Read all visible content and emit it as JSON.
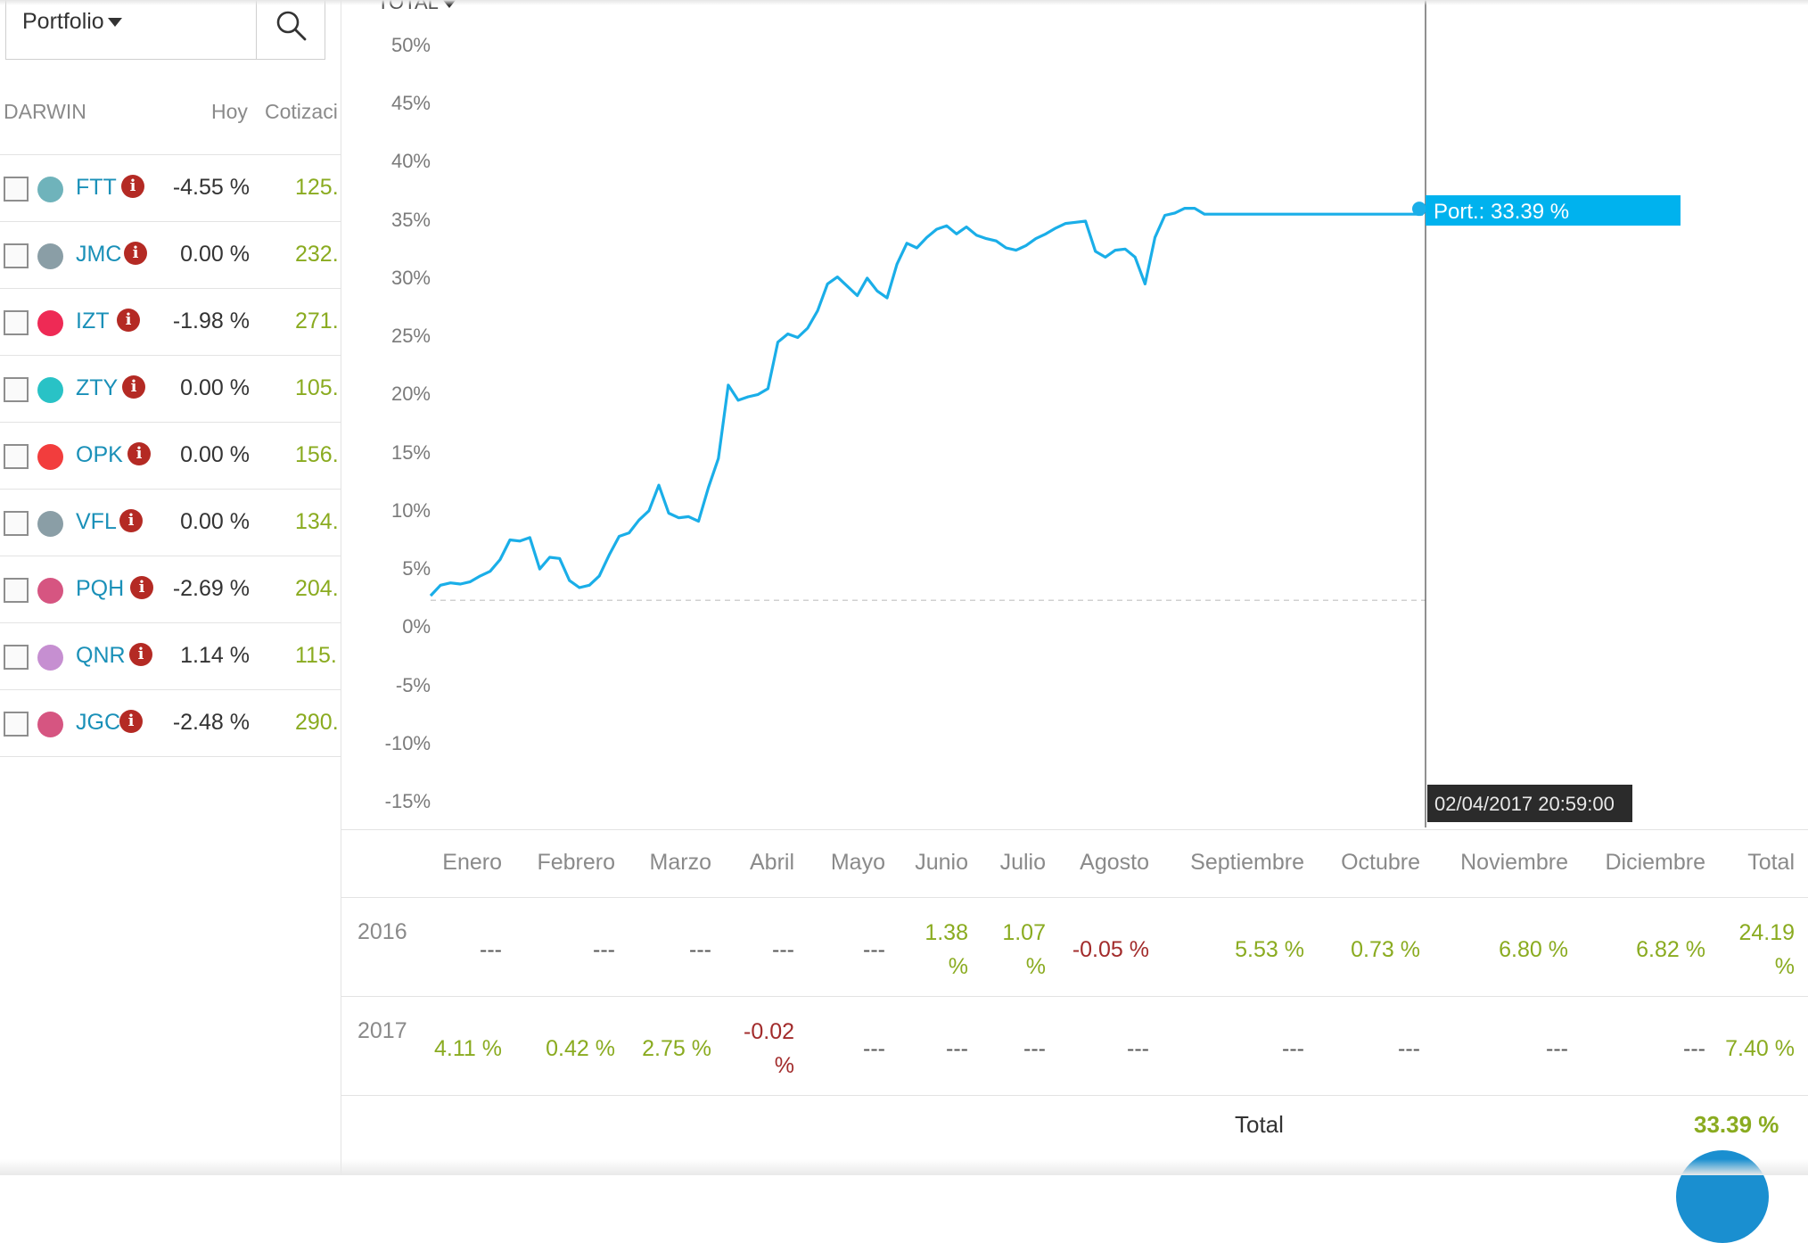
{
  "portfolio": {
    "label": "Portfolio"
  },
  "table": {
    "headers": {
      "darwin": "DARWIN",
      "hoy": "Hoy",
      "cotizacion": "Cotizaci"
    },
    "rows": [
      {
        "name": "FTT",
        "color": "#6fb3bb",
        "hoy": "-4.55 %",
        "cotizacion": "125."
      },
      {
        "name": "JMC",
        "color": "#8a9ea6",
        "hoy": "0.00 %",
        "cotizacion": "232."
      },
      {
        "name": "IZT",
        "color": "#ee2a55",
        "hoy": "-1.98 %",
        "cotizacion": "271."
      },
      {
        "name": "ZTY",
        "color": "#29c2c6",
        "hoy": "0.00 %",
        "cotizacion": "105."
      },
      {
        "name": "OPK",
        "color": "#f23d3d",
        "hoy": "0.00 %",
        "cotizacion": "156."
      },
      {
        "name": "VFL",
        "color": "#8a9ea6",
        "hoy": "0.00 %",
        "cotizacion": "134."
      },
      {
        "name": "PQH",
        "color": "#d65581",
        "hoy": "-2.69 %",
        "cotizacion": "204."
      },
      {
        "name": "QNR",
        "color": "#c68fd1",
        "hoy": "1.14 %",
        "cotizacion": "115."
      },
      {
        "name": "JGC",
        "color": "#d65581",
        "hoy": "-2.48 %",
        "cotizacion": "290."
      }
    ]
  },
  "chart": {
    "period_label": "TOTAL",
    "tooltip_label": "Port.: 33.39 %",
    "date_label": "02/04/2017 20:59:00",
    "line_color": "#1aaee8"
  },
  "chart_data": {
    "type": "line",
    "y_ticks": [
      "50%",
      "45%",
      "40%",
      "35%",
      "30%",
      "25%",
      "20%",
      "15%",
      "10%",
      "5%",
      "0%",
      "-5%",
      "-10%",
      "-15%"
    ],
    "ylim": [
      -15,
      50
    ],
    "xlim": [
      0,
      100
    ],
    "baseline": 2.3,
    "series": [
      {
        "x": [
          0,
          1,
          2,
          3,
          4,
          5,
          6,
          7,
          8,
          9,
          10,
          11,
          12,
          13,
          14,
          15,
          16,
          17,
          18,
          19,
          20,
          21,
          22,
          23,
          24,
          25,
          26,
          27,
          28,
          29,
          30,
          31,
          32,
          33,
          34,
          35,
          36,
          37,
          38,
          39,
          40,
          41,
          42,
          43,
          44,
          45,
          46,
          47,
          48,
          49,
          50,
          51,
          52,
          53,
          54,
          55,
          56,
          57,
          58,
          59,
          60,
          61,
          62,
          63,
          64,
          65,
          66,
          67,
          68,
          69,
          70,
          71,
          72,
          73,
          74,
          75,
          76,
          77,
          78,
          79,
          80,
          81,
          82,
          83,
          84,
          85,
          86,
          87,
          88,
          89,
          90,
          91,
          92,
          93,
          94,
          95,
          96,
          97,
          98,
          99,
          100
        ],
        "y": [
          2.7,
          3.6,
          3.8,
          3.7,
          3.9,
          4.4,
          4.8,
          5.8,
          7.5,
          7.4,
          7.7,
          5,
          6,
          5.9,
          4,
          3.4,
          3.6,
          4.4,
          6.2,
          7.8,
          8.1,
          9.2,
          10,
          12.2,
          9.8,
          9.4,
          9.5,
          9.1,
          12,
          14.5,
          20.8,
          19.5,
          19.8,
          20,
          20.5,
          24.5,
          25.2,
          24.9,
          25.7,
          27.2,
          29.5,
          30.1,
          29.3,
          28.5,
          30,
          28.9,
          28.3,
          31.2,
          33,
          32.6,
          33.5,
          34.2,
          34.5,
          33.8,
          34.4,
          33.7,
          33.4,
          33.2,
          32.6,
          32.4,
          32.8,
          33.4,
          33.8,
          34.3,
          34.7,
          34.8,
          34.9,
          32.3,
          31.8,
          32.4,
          32.5,
          31.8,
          29.5,
          33.5,
          35.4,
          35.6,
          36,
          36,
          35.5,
          35.5,
          35.5,
          35.5,
          35.5,
          35.5,
          35.5,
          35.5,
          35.5,
          35.5,
          35.5,
          35.5,
          35.5,
          35.5,
          35.5,
          35.5,
          35.5,
          35.5,
          35.5,
          35.5,
          35.5,
          35.5,
          35.5
        ]
      }
    ]
  },
  "monthly": {
    "months": [
      "Enero",
      "Febrero",
      "Marzo",
      "Abril",
      "Mayo",
      "Junio",
      "Julio",
      "Agosto",
      "Septiembre",
      "Octubre",
      "Noviembre",
      "Diciembre",
      "Total"
    ],
    "years": [
      {
        "year": "2016",
        "values": [
          "---",
          "---",
          "---",
          "---",
          "---",
          "1.38 %",
          "1.07 %",
          "-0.05 %",
          "5.53 %",
          "0.73 %",
          "6.80 %",
          "6.82 %",
          "24.19 %"
        ]
      },
      {
        "year": "2017",
        "values": [
          "4.11 %",
          "0.42 %",
          "2.75 %",
          "-0.02 %",
          "---",
          "---",
          "---",
          "---",
          "---",
          "---",
          "---",
          "---",
          "7.40 %"
        ]
      }
    ],
    "total_label": "Total",
    "total_value": "33.39 %"
  }
}
